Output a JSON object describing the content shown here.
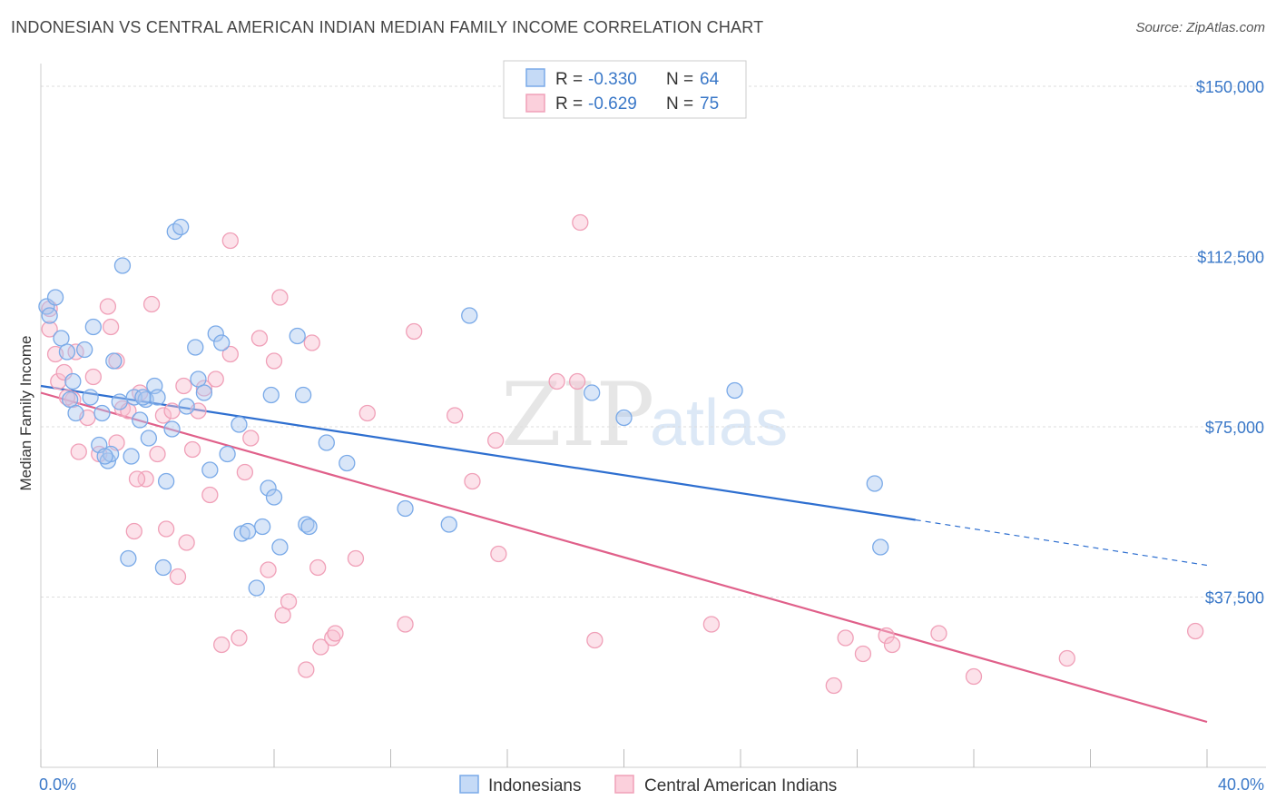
{
  "title": "INDONESIAN VS CENTRAL AMERICAN INDIAN MEDIAN FAMILY INCOME CORRELATION CHART",
  "source": "Source: ZipAtlas.com",
  "watermark": {
    "part1": "ZIP",
    "part2": "atlas"
  },
  "legend": {
    "r_label": "R =",
    "n_label": "N =",
    "rows": [
      {
        "r": "-0.330",
        "n": "64"
      },
      {
        "r": "-0.629",
        "n": "75"
      }
    ]
  },
  "chart_data": {
    "type": "scatter",
    "xlabel": "",
    "ylabel": "Median Family Income",
    "x_tick_labels": [
      "0.0%",
      "40.0%"
    ],
    "y_tick_labels": [
      "$150,000",
      "$112,500",
      "$75,000",
      "$37,500"
    ],
    "xlim": [
      0,
      40
    ],
    "ylim": [
      0,
      155000
    ],
    "y_ticks": [
      150000,
      112500,
      75000,
      37500
    ],
    "grid": true,
    "legend_position": "top-center",
    "colors": {
      "Indonesians": "#7aaae8",
      "Central American Indians": "#f0a0b8",
      "blue_line": "#2e6fd0",
      "pink_line": "#e0608a"
    },
    "series": [
      {
        "name": "Indonesians",
        "r": -0.33,
        "n": 64,
        "trend": {
          "x0": 0,
          "y0": 84000,
          "x1": 30,
          "y1": 54500,
          "dash_to_x": 40,
          "dash_to_y": 44500
        },
        "points": [
          [
            0.2,
            101500
          ],
          [
            0.3,
            99500
          ],
          [
            0.5,
            103500
          ],
          [
            0.7,
            94500
          ],
          [
            0.9,
            91500
          ],
          [
            1.0,
            81000
          ],
          [
            1.2,
            78000
          ],
          [
            1.5,
            92000
          ],
          [
            1.7,
            81500
          ],
          [
            1.8,
            97000
          ],
          [
            2.0,
            71000
          ],
          [
            2.1,
            78000
          ],
          [
            2.3,
            67500
          ],
          [
            2.4,
            69000
          ],
          [
            2.5,
            89500
          ],
          [
            2.7,
            80500
          ],
          [
            2.8,
            110500
          ],
          [
            3.0,
            46000
          ],
          [
            3.1,
            68500
          ],
          [
            3.2,
            81500
          ],
          [
            3.4,
            76500
          ],
          [
            3.6,
            81000
          ],
          [
            3.7,
            72500
          ],
          [
            3.9,
            84000
          ],
          [
            4.0,
            81500
          ],
          [
            4.2,
            44000
          ],
          [
            4.3,
            63000
          ],
          [
            4.5,
            74500
          ],
          [
            4.6,
            118000
          ],
          [
            4.8,
            119000
          ],
          [
            5.0,
            79500
          ],
          [
            5.3,
            92500
          ],
          [
            5.4,
            85500
          ],
          [
            5.6,
            82500
          ],
          [
            5.8,
            65500
          ],
          [
            6.0,
            95500
          ],
          [
            6.2,
            93500
          ],
          [
            6.4,
            69000
          ],
          [
            6.8,
            75500
          ],
          [
            6.9,
            51500
          ],
          [
            7.1,
            52000
          ],
          [
            7.4,
            39500
          ],
          [
            7.6,
            53000
          ],
          [
            7.8,
            61500
          ],
          [
            8.2,
            48500
          ],
          [
            7.9,
            82000
          ],
          [
            8.0,
            59500
          ],
          [
            8.8,
            95000
          ],
          [
            9.0,
            82000
          ],
          [
            9.1,
            53500
          ],
          [
            9.2,
            53000
          ],
          [
            9.8,
            71500
          ],
          [
            10.5,
            67000
          ],
          [
            12.5,
            57000
          ],
          [
            14.0,
            53500
          ],
          [
            14.7,
            99500
          ],
          [
            18.9,
            82500
          ],
          [
            20.0,
            77000
          ],
          [
            23.8,
            83000
          ],
          [
            28.6,
            62500
          ],
          [
            28.8,
            48500
          ],
          [
            3.5,
            81500
          ],
          [
            1.1,
            85000
          ],
          [
            2.2,
            68500
          ]
        ]
      },
      {
        "name": "Central American Indians",
        "r": -0.629,
        "n": 75,
        "trend": {
          "x0": 0,
          "y0": 82500,
          "x1": 40,
          "y1": 10000
        },
        "points": [
          [
            0.3,
            101000
          ],
          [
            0.3,
            96500
          ],
          [
            0.5,
            91000
          ],
          [
            0.6,
            85000
          ],
          [
            0.8,
            87000
          ],
          [
            1.1,
            81000
          ],
          [
            1.3,
            69500
          ],
          [
            1.6,
            77000
          ],
          [
            1.8,
            86000
          ],
          [
            2.0,
            69000
          ],
          [
            2.3,
            101500
          ],
          [
            2.4,
            97000
          ],
          [
            2.6,
            89500
          ],
          [
            2.8,
            79000
          ],
          [
            3.0,
            78500
          ],
          [
            3.2,
            52000
          ],
          [
            3.4,
            82500
          ],
          [
            3.6,
            63500
          ],
          [
            3.8,
            102000
          ],
          [
            4.0,
            69000
          ],
          [
            4.2,
            77500
          ],
          [
            4.3,
            52500
          ],
          [
            4.5,
            78500
          ],
          [
            4.7,
            42000
          ],
          [
            4.9,
            84000
          ],
          [
            5.0,
            49500
          ],
          [
            5.2,
            70000
          ],
          [
            5.4,
            78500
          ],
          [
            5.6,
            83500
          ],
          [
            5.8,
            60000
          ],
          [
            6.0,
            85500
          ],
          [
            6.2,
            27000
          ],
          [
            6.5,
            91000
          ],
          [
            6.5,
            116000
          ],
          [
            6.8,
            28500
          ],
          [
            7.0,
            65000
          ],
          [
            7.2,
            72500
          ],
          [
            7.5,
            94500
          ],
          [
            7.8,
            43500
          ],
          [
            8.0,
            89500
          ],
          [
            8.2,
            103500
          ],
          [
            8.3,
            33500
          ],
          [
            8.5,
            36500
          ],
          [
            9.1,
            21500
          ],
          [
            9.3,
            93500
          ],
          [
            9.5,
            44000
          ],
          [
            9.6,
            26500
          ],
          [
            10.0,
            28500
          ],
          [
            10.1,
            29500
          ],
          [
            10.8,
            46000
          ],
          [
            11.2,
            78000
          ],
          [
            12.5,
            31500
          ],
          [
            12.8,
            96000
          ],
          [
            14.2,
            77500
          ],
          [
            14.8,
            63000
          ],
          [
            15.6,
            72000
          ],
          [
            15.7,
            47000
          ],
          [
            17.7,
            85000
          ],
          [
            18.4,
            85000
          ],
          [
            19.0,
            28000
          ],
          [
            18.5,
            120000
          ],
          [
            23.0,
            31500
          ],
          [
            27.2,
            18000
          ],
          [
            27.6,
            28500
          ],
          [
            28.2,
            25000
          ],
          [
            29.0,
            29000
          ],
          [
            29.2,
            27000
          ],
          [
            30.8,
            29500
          ],
          [
            32.0,
            20000
          ],
          [
            35.2,
            24000
          ],
          [
            39.6,
            30000
          ],
          [
            0.9,
            81500
          ],
          [
            1.2,
            91500
          ],
          [
            3.3,
            63500
          ],
          [
            2.6,
            71500
          ]
        ]
      }
    ]
  },
  "bottom_legend": [
    "Indonesians",
    "Central American Indians"
  ]
}
